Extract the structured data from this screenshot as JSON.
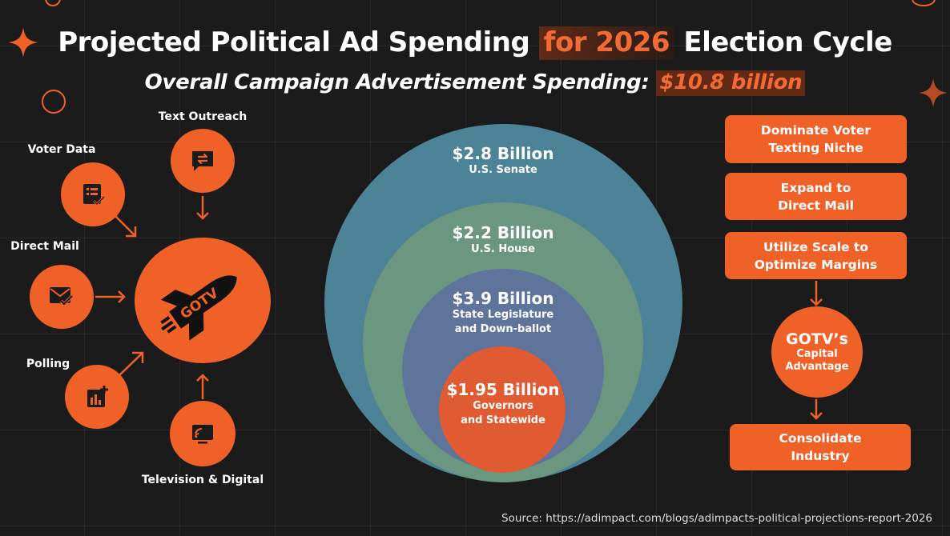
{
  "header": {
    "title_part1": "Projected Political Ad Spending ",
    "title_highlight": "for 2026",
    "title_part2": " Election Cycle",
    "subtitle_text": "Overall Campaign Advertisement Spending: ",
    "subtitle_highlight": "$10.8 billion"
  },
  "left_diagram": {
    "center": {
      "text": "GOTV",
      "icon": "rocket-icon"
    },
    "inputs": [
      {
        "label": "Text Outreach",
        "icon": "chat-transfer-icon"
      },
      {
        "label": "Voter Data",
        "icon": "checklist-icon"
      },
      {
        "label": "Direct Mail",
        "icon": "mail-check-icon"
      },
      {
        "label": "Polling",
        "icon": "bar-chart-plus-icon"
      },
      {
        "label": "Television & Digital",
        "icon": "cast-screen-icon"
      }
    ]
  },
  "nested_circles": [
    {
      "value": "$2.8 Billion",
      "label": "U.S. Senate",
      "color": "#4c8396"
    },
    {
      "value": "$2.2 Billion",
      "label": "U.S. House",
      "color": "#6b9680"
    },
    {
      "value": "$3.9 Billion",
      "label": "State Legislature\nand Down-ballot",
      "color": "#5f749a"
    },
    {
      "value": "$1.95 Billion",
      "label": "Governors\nand Statewide",
      "color": "#e05a32"
    }
  ],
  "flow": {
    "steps_top": [
      "Dominate Voter\nTexting Niche",
      "Expand to\nDirect Mail",
      "Utilize Scale to\nOptimize Margins"
    ],
    "hub": {
      "title": "GOTV’s",
      "subtitle": "Capital\nAdvantage"
    },
    "final_step": "Consolidate\nIndustry"
  },
  "source": "Source: https://adimpact.com/blogs/adimpacts-political-projections-report-2026",
  "colors": {
    "accent": "#f06128",
    "background": "#1b1b1b"
  }
}
